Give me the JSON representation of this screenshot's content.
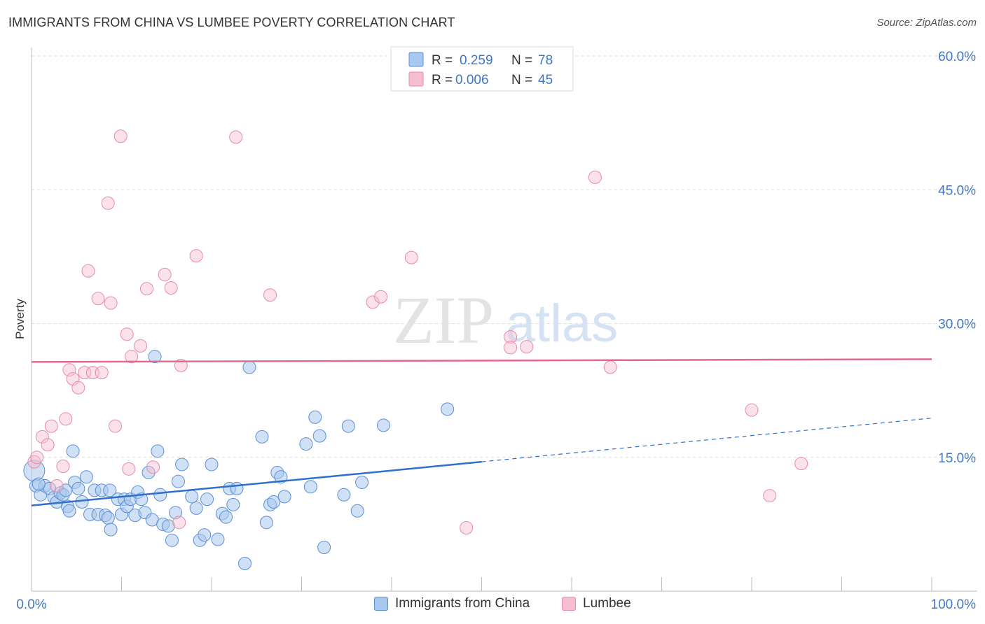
{
  "title": "IMMIGRANTS FROM CHINA VS LUMBEE POVERTY CORRELATION CHART",
  "source": "Source: ZipAtlas.com",
  "watermark": {
    "zip": "ZIP",
    "atlas": "atlas"
  },
  "colors": {
    "china_fill": "#a9c8ef",
    "china_stroke": "#5b8fd6",
    "china_line": "#2f6fce",
    "lumbee_fill": "#f6bfd0",
    "lumbee_stroke": "#e88aa8",
    "lumbee_line": "#e0698f",
    "axis_label": "#3f77c8"
  },
  "legend_top": {
    "rows": [
      {
        "r_label": "R =",
        "r_value": "0.259",
        "n_label": "N =",
        "n_value": "78"
      },
      {
        "r_label": "R =",
        "r_value": "0.006",
        "n_label": "N =",
        "n_value": "45"
      }
    ]
  },
  "legend_bottom": [
    {
      "label": "Immigrants from China"
    },
    {
      "label": "Lumbee"
    }
  ],
  "chart_data": {
    "type": "scatter",
    "title": "IMMIGRANTS FROM CHINA VS LUMBEE POVERTY CORRELATION CHART",
    "xlabel": "",
    "ylabel": "Poverty",
    "xlim": [
      0,
      100
    ],
    "ylim": [
      0,
      60
    ],
    "x_tick_labels": [
      "0.0%",
      "100.0%"
    ],
    "y_ticks": [
      15,
      30,
      45,
      60
    ],
    "y_tick_labels": [
      "15.0%",
      "30.0%",
      "45.0%",
      "60.0%"
    ],
    "series": [
      {
        "name": "Immigrants from China",
        "r": 0.259,
        "n": 78,
        "trend": {
          "x0": 0,
          "y0": 9.6,
          "x1": 50,
          "y1": 14.5,
          "dash_x1": 100,
          "dash_y1": 19.4
        },
        "points": [
          [
            0.3,
            13.5
          ],
          [
            0.5,
            11.8
          ],
          [
            1,
            10.8
          ],
          [
            1.5,
            11.8
          ],
          [
            2,
            11.5
          ],
          [
            2.5,
            10.5
          ],
          [
            2.8,
            10
          ],
          [
            3.2,
            11
          ],
          [
            3.5,
            10.8
          ],
          [
            3.8,
            11.3
          ],
          [
            4,
            9.5
          ],
          [
            4.2,
            9
          ],
          [
            4.6,
            15.7
          ],
          [
            4.8,
            12.2
          ],
          [
            5.2,
            11.5
          ],
          [
            5.6,
            10
          ],
          [
            6.1,
            12.8
          ],
          [
            6.5,
            8.6
          ],
          [
            7,
            11.3
          ],
          [
            7.4,
            8.6
          ],
          [
            7.8,
            11.3
          ],
          [
            8.2,
            8.5
          ],
          [
            8.5,
            8.2
          ],
          [
            8.8,
            6.9
          ],
          [
            8.7,
            11.3
          ],
          [
            9.6,
            10.3
          ],
          [
            10,
            8.6
          ],
          [
            10.3,
            10.3
          ],
          [
            10.6,
            9.5
          ],
          [
            11,
            10.3
          ],
          [
            11.5,
            8.5
          ],
          [
            11.8,
            11.1
          ],
          [
            12.2,
            10.3
          ],
          [
            12.6,
            8.8
          ],
          [
            13,
            13.3
          ],
          [
            13.4,
            8
          ],
          [
            13.7,
            26.3
          ],
          [
            14,
            15.7
          ],
          [
            14.3,
            10.8
          ],
          [
            14.6,
            7.5
          ],
          [
            15.2,
            7.3
          ],
          [
            15.6,
            5.7
          ],
          [
            16,
            8.8
          ],
          [
            16.3,
            12.3
          ],
          [
            16.7,
            14.2
          ],
          [
            17.8,
            10.6
          ],
          [
            18.3,
            9.3
          ],
          [
            18.7,
            5.7
          ],
          [
            19.2,
            6.3
          ],
          [
            19.5,
            10.3
          ],
          [
            20,
            14.2
          ],
          [
            20.7,
            5.8
          ],
          [
            21.2,
            8.7
          ],
          [
            21.6,
            8.3
          ],
          [
            22,
            11.5
          ],
          [
            22.4,
            9.7
          ],
          [
            22.8,
            11.5
          ],
          [
            23.7,
            3.1
          ],
          [
            24.2,
            25.1
          ],
          [
            25.6,
            17.3
          ],
          [
            26.1,
            7.7
          ],
          [
            26.5,
            9.7
          ],
          [
            26.9,
            10
          ],
          [
            27.3,
            13.3
          ],
          [
            27.7,
            12.8
          ],
          [
            28.1,
            10.6
          ],
          [
            30.5,
            16.5
          ],
          [
            31,
            11.7
          ],
          [
            31.5,
            19.5
          ],
          [
            32,
            17.4
          ],
          [
            32.5,
            4.9
          ],
          [
            34.7,
            10.8
          ],
          [
            35.2,
            18.5
          ],
          [
            36.2,
            9
          ],
          [
            36.7,
            12.2
          ],
          [
            39.1,
            18.6
          ],
          [
            46.2,
            20.4
          ],
          [
            0.8,
            12
          ]
        ]
      },
      {
        "name": "Lumbee",
        "r": 0.006,
        "n": 45,
        "trend": {
          "x0": 0,
          "y0": 25.7,
          "x1": 100,
          "y1": 26.0
        },
        "points": [
          [
            0.3,
            14.5
          ],
          [
            0.6,
            15
          ],
          [
            1.2,
            17.3
          ],
          [
            1.8,
            16.4
          ],
          [
            2.2,
            18.5
          ],
          [
            2.8,
            11.8
          ],
          [
            3.5,
            14
          ],
          [
            3.8,
            19.3
          ],
          [
            4.2,
            24.8
          ],
          [
            4.6,
            23.8
          ],
          [
            5.2,
            22.8
          ],
          [
            5.9,
            24.5
          ],
          [
            6.3,
            35.9
          ],
          [
            6.8,
            24.5
          ],
          [
            7.4,
            32.8
          ],
          [
            7.8,
            24.5
          ],
          [
            8.5,
            43.5
          ],
          [
            8.8,
            32.3
          ],
          [
            9.3,
            18.5
          ],
          [
            9.9,
            51
          ],
          [
            10.6,
            28.8
          ],
          [
            10.8,
            13.7
          ],
          [
            11.1,
            26.3
          ],
          [
            12.1,
            27.5
          ],
          [
            12.8,
            33.9
          ],
          [
            13.5,
            13.9
          ],
          [
            14.8,
            35.5
          ],
          [
            15.5,
            34
          ],
          [
            16.4,
            7.7
          ],
          [
            16.6,
            25.3
          ],
          [
            18.3,
            37.6
          ],
          [
            22.7,
            50.9
          ],
          [
            26.5,
            33.2
          ],
          [
            37.9,
            32.4
          ],
          [
            38.8,
            33
          ],
          [
            42.2,
            37.4
          ],
          [
            48.3,
            7.1
          ],
          [
            53.2,
            28.5
          ],
          [
            53.2,
            27.3
          ],
          [
            55,
            27.4
          ],
          [
            62.6,
            46.4
          ],
          [
            64.3,
            25.1
          ],
          [
            80,
            20.3
          ],
          [
            82,
            10.7
          ],
          [
            85.5,
            14.3
          ]
        ]
      }
    ]
  }
}
